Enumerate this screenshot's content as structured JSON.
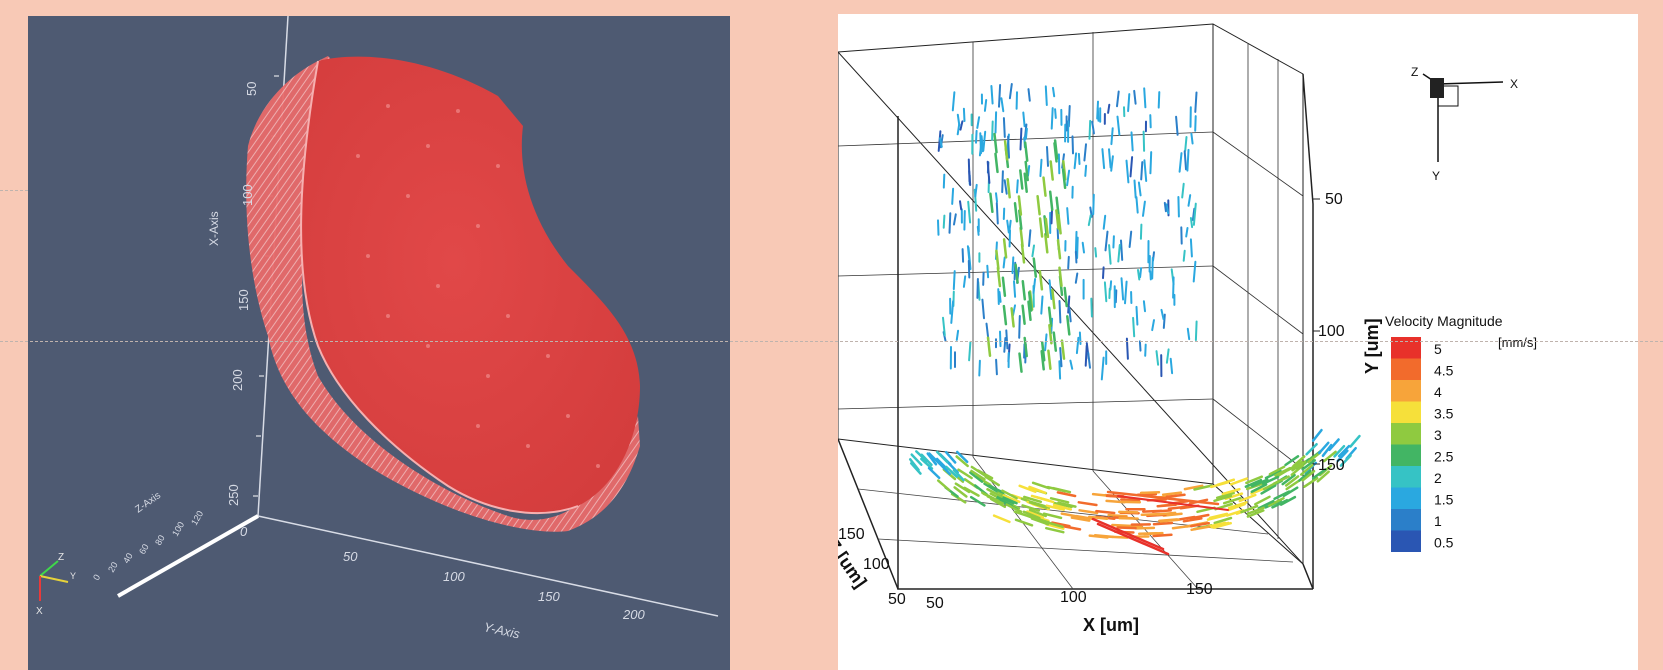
{
  "left_view": {
    "x_axis_title": "X-Axis",
    "x_ticks": [
      "50",
      "100",
      "150",
      "200",
      "250"
    ],
    "y_axis_title": "Y-Axis",
    "y_ticks": [
      "0",
      "50",
      "100",
      "150",
      "200"
    ],
    "z_axis_title": "Z-Axis",
    "z_ticks": [
      "0",
      "20",
      "40",
      "60",
      "80",
      "100",
      "120"
    ],
    "triad_labels": [
      "Z",
      "Y",
      "X"
    ],
    "colors": {
      "background": "#4e5a72",
      "body": "#e05050",
      "rim": "#f4a0a0",
      "axis": "#ffffff"
    }
  },
  "right_view": {
    "legend": {
      "title": "Velocity Magnitude",
      "unit": "[mm/s]",
      "levels": [
        "5",
        "4.5",
        "4",
        "3.5",
        "3",
        "2.5",
        "2",
        "1.5",
        "1",
        "0.5"
      ],
      "colors": [
        "#e8312a",
        "#f26b2c",
        "#f7a43a",
        "#f6e03a",
        "#8fca40",
        "#42b564",
        "#36c3c5",
        "#2aa8e0",
        "#2b7fc9",
        "#2a56b3"
      ]
    },
    "x_axis_title": "X [um]",
    "x_ticks": [
      "50",
      "100",
      "150"
    ],
    "y_axis_title": "Y [um]",
    "y_ticks": [
      "50",
      "100",
      "150"
    ],
    "z_axis_title": "Z [um]",
    "z_ticks": [
      "50",
      "100",
      "150"
    ],
    "orientation_labels": [
      "Z",
      "X",
      "Y"
    ]
  }
}
